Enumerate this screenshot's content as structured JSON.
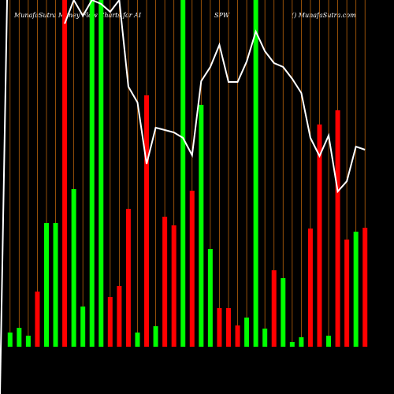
{
  "chart_data": {
    "type": "bar-line",
    "title": "MunafaSutra  Money Flow  Charts for AI",
    "subtitle": "SPW",
    "source": "() MunafaSutra.com",
    "ylim": [
      0,
      440
    ],
    "bars": {
      "values": [
        18,
        24,
        14,
        70,
        157,
        157,
        440,
        200,
        51,
        440,
        440,
        63,
        77,
        175,
        18,
        319,
        26,
        165,
        154,
        440,
        198,
        307,
        124,
        49,
        49,
        27,
        37,
        440,
        23,
        97,
        87,
        6,
        12,
        150,
        282,
        14,
        300,
        136,
        146,
        151
      ],
      "colors": [
        "#00ff00",
        "#00ff00",
        "#00ff00",
        "#ff0000",
        "#00ff00",
        "#00ff00",
        "#ff0000",
        "#00ff00",
        "#00ff00",
        "#00ff00",
        "#00ff00",
        "#ff0000",
        "#ff0000",
        "#ff0000",
        "#00ff00",
        "#ff0000",
        "#00ff00",
        "#ff0000",
        "#ff0000",
        "#00ff00",
        "#ff0000",
        "#00ff00",
        "#00ff00",
        "#ff0000",
        "#ff0000",
        "#ff0000",
        "#00ff00",
        "#00ff00",
        "#00ff00",
        "#ff0000",
        "#00ff00",
        "#00ff00",
        "#00ff00",
        "#ff0000",
        "#ff0000",
        "#00ff00",
        "#ff0000",
        "#ff0000",
        "#00ff00",
        "#ff0000"
      ]
    },
    "line": {
      "color": "#ffffff",
      "values": [
        null,
        null,
        null,
        null,
        null,
        null,
        410,
        440,
        420,
        440,
        435,
        425,
        440,
        330,
        310,
        232,
        278,
        275,
        272,
        265,
        243,
        337,
        355,
        383,
        336,
        336,
        362,
        400,
        375,
        360,
        355,
        340,
        322,
        265,
        242,
        268,
        197,
        210,
        254,
        250
      ]
    }
  }
}
